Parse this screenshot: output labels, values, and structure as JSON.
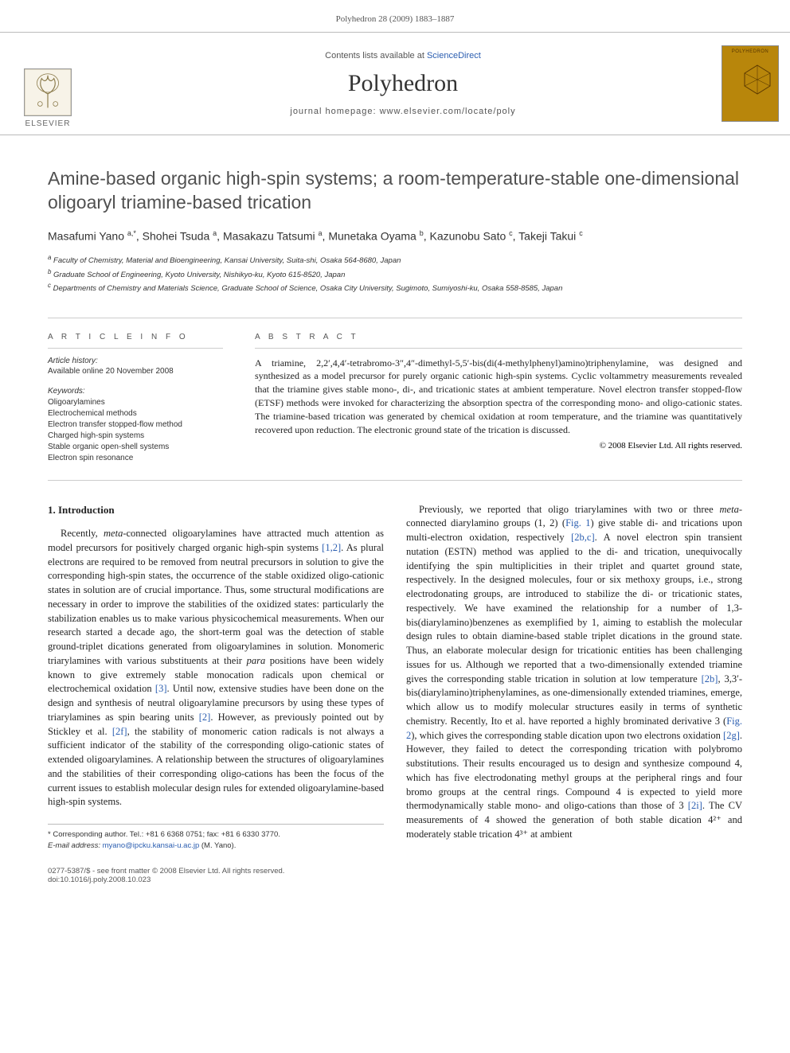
{
  "header": {
    "citation": "Polyhedron 28 (2009) 1883–1887"
  },
  "banner": {
    "contents_prefix": "Contents lists available at ",
    "contents_link": "ScienceDirect",
    "journal": "Polyhedron",
    "homepage_prefix": "journal homepage: ",
    "homepage_url": "www.elsevier.com/locate/poly",
    "publisher": "ELSEVIER",
    "cover_label": "POLYHEDRON"
  },
  "article": {
    "title": "Amine-based organic high-spin systems; a room-temperature-stable one-dimensional oligoaryl triamine-based trication",
    "authors_html": "Masafumi Yano <sup>a,*</sup>, Shohei Tsuda <sup>a</sup>, Masakazu Tatsumi <sup>a</sup>, Munetaka Oyama <sup>b</sup>, Kazunobu Sato <sup>c</sup>, Takeji Takui <sup>c</sup>",
    "affiliations": [
      "a Faculty of Chemistry, Material and Bioengineering, Kansai University, Suita-shi, Osaka 564-8680, Japan",
      "b Graduate School of Engineering, Kyoto University, Nishikyo-ku, Kyoto 615-8520, Japan",
      "c Departments of Chemistry and Materials Science, Graduate School of Science, Osaka City University, Sugimoto, Sumiyoshi-ku, Osaka 558-8585, Japan"
    ]
  },
  "info": {
    "heading": "A R T I C L E   I N F O",
    "history_head": "Article history:",
    "history_line": "Available online 20 November 2008",
    "keywords_head": "Keywords:",
    "keywords": [
      "Oligoarylamines",
      "Electrochemical methods",
      "Electron transfer stopped-flow method",
      "Charged high-spin systems",
      "Stable organic open-shell systems",
      "Electron spin resonance"
    ]
  },
  "abstract": {
    "heading": "A B S T R A C T",
    "text": "A triamine, 2,2′,4,4′-tetrabromo-3″,4″-dimethyl-5,5′-bis(di(4-methylphenyl)amino)triphenylamine, was designed and synthesized as a model precursor for purely organic cationic high-spin systems. Cyclic voltammetry measurements revealed that the triamine gives stable mono-, di-, and tricationic states at ambient temperature. Novel electron transfer stopped-flow (ETSF) methods were invoked for characterizing the absorption spectra of the corresponding mono- and oligo-cationic states. The triamine-based trication was generated by chemical oxidation at room temperature, and the triamine was quantitatively recovered upon reduction. The electronic ground state of the trication is discussed.",
    "copyright": "© 2008 Elsevier Ltd. All rights reserved."
  },
  "intro": {
    "head": "1. Introduction",
    "left": "Recently, meta-connected oligoarylamines have attracted much attention as model precursors for positively charged organic high-spin systems [1,2]. As plural electrons are required to be removed from neutral precursors in solution to give the corresponding high-spin states, the occurrence of the stable oxidized oligo-cationic states in solution are of crucial importance. Thus, some structural modifications are necessary in order to improve the stabilities of the oxidized states: particularly the stabilization enables us to make various physicochemical measurements. When our research started a decade ago, the short-term goal was the detection of stable ground-triplet dications generated from oligoarylamines in solution. Monomeric triarylamines with various substituents at their para positions have been widely known to give extremely stable monocation radicals upon chemical or electrochemical oxidation [3]. Until now, extensive studies have been done on the design and synthesis of neutral oligoarylamine precursors by using these types of triarylamines as spin bearing units [2]. However, as previously pointed out by Stickley et al. [2f], the stability of monomeric cation radicals is not always a sufficient indicator of the stability of the corresponding oligo-cationic states of extended oligoarylamines. A relationship between the structures of oligoarylamines and the stabilities of their corresponding oligo-cations has been the focus of the current issues to establish molecular design rules for extended oligoarylamine-based high-spin systems.",
    "right": "Previously, we reported that oligo triarylamines with two or three meta-connected diarylamino groups (1, 2) (Fig. 1) give stable di- and trications upon multi-electron oxidation, respectively [2b,c]. A novel electron spin transient nutation (ESTN) method was applied to the di- and trication, unequivocally identifying the spin multiplicities in their triplet and quartet ground state, respectively. In the designed molecules, four or six methoxy groups, i.e., strong electrodonating groups, are introduced to stabilize the di- or tricationic states, respectively. We have examined the relationship for a number of 1,3- bis(diarylamino)benzenes as exemplified by 1, aiming to establish the molecular design rules to obtain diamine-based stable triplet dications in the ground state. Thus, an elaborate molecular design for tricationic entities has been challenging issues for us. Although we reported that a two-dimensionally extended triamine gives the corresponding stable trication in solution at low temperature [2b], 3,3′-bis(diarylamino)triphenylamines, as one-dimensionally extended triamines, emerge, which allow us to modify molecular structures easily in terms of synthetic chemistry. Recently, Ito et al. have reported a highly brominated derivative 3 (Fig. 2), which gives the corresponding stable dication upon two electrons oxidation [2g]. However, they failed to detect the corresponding trication with polybromo substitutions. Their results encouraged us to design and synthesize compound 4, which has five electrodonating methyl groups at the peripheral rings and four bromo groups at the central rings. Compound 4 is expected to yield more thermodynamically stable mono- and oligo-cations than those of 3 [2i]. The CV measurements of 4 showed the generation of both stable dication 4²⁺ and moderately stable trication 4³⁺ at ambient"
  },
  "footer": {
    "corr": "* Corresponding author. Tel.: +81 6 6368 0751; fax: +81 6 6330 3770.",
    "email_label": "E-mail address: ",
    "email": "myano@ipcku.kansai-u.ac.jp",
    "email_suffix": " (M. Yano).",
    "issn": "0277-5387/$ - see front matter © 2008 Elsevier Ltd. All rights reserved.",
    "doi": "doi:10.1016/j.poly.2008.10.023"
  },
  "colors": {
    "link": "#2a5db0",
    "rule": "#cccccc",
    "heading": "#505050",
    "cover": "#b8860b"
  }
}
